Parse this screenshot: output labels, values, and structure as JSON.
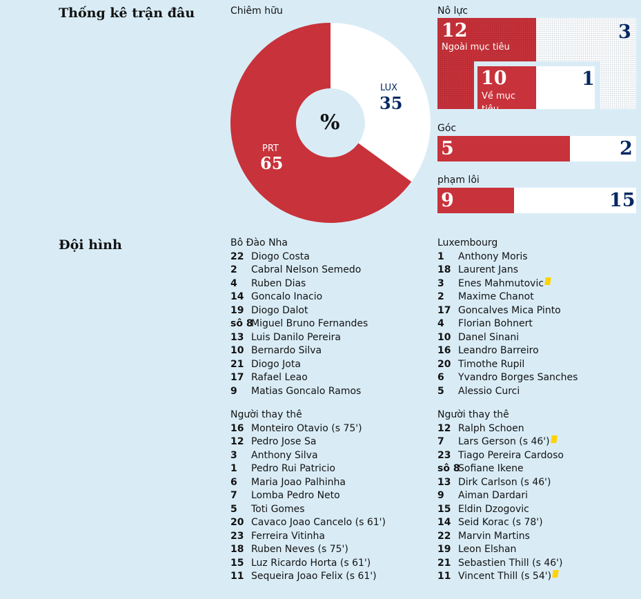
{
  "headings": {
    "stats": "Thống kê trận đâu",
    "lineups": "Đội hình"
  },
  "possession": {
    "label": "Chiêm hữu",
    "center": "%",
    "home_code": "PRT",
    "home_value": 65,
    "away_code": "LUX",
    "away_value": 35,
    "colors": {
      "home": "#c8323a",
      "away": "#ffffff",
      "center": "#d9ecf6"
    }
  },
  "effort": {
    "label": "Nô lực",
    "off_target_home": "12",
    "off_target_label": "Ngoài mục tiêu",
    "off_target_away": "3",
    "on_target_home": "10",
    "on_target_label": "Về mục tiêu",
    "on_target_away": "1"
  },
  "corners": {
    "label": "Góc",
    "home": "5",
    "away": "2"
  },
  "fouls": {
    "label": "phạm lôi",
    "home": "9",
    "away": "15"
  },
  "home_team": {
    "name": "Bô Đào Nha",
    "starters": [
      {
        "num": "22",
        "name": "Diogo Costa"
      },
      {
        "num": "2",
        "name": "Cabral Nelson Semedo"
      },
      {
        "num": "4",
        "name": "Ruben Dias"
      },
      {
        "num": "14",
        "name": "Goncalo Inacio"
      },
      {
        "num": "19",
        "name": "Diogo Dalot"
      },
      {
        "num": "sô 8",
        "name": "Miguel Bruno Fernandes"
      },
      {
        "num": "13",
        "name": "Luis Danilo Pereira"
      },
      {
        "num": "10",
        "name": "Bernardo Silva"
      },
      {
        "num": "21",
        "name": "Diogo Jota"
      },
      {
        "num": "17",
        "name": "Rafael Leao"
      },
      {
        "num": "9",
        "name": "Matias Goncalo Ramos"
      }
    ],
    "subs_label": "Người thay thê",
    "subs": [
      {
        "num": "16",
        "name": "Monteiro Otavio (s 75')"
      },
      {
        "num": "12",
        "name": "Pedro Jose Sa"
      },
      {
        "num": "3",
        "name": "Anthony Silva"
      },
      {
        "num": "1",
        "name": "Pedro Rui Patricio"
      },
      {
        "num": "6",
        "name": "Maria Joao Palhinha"
      },
      {
        "num": "7",
        "name": "Lomba Pedro Neto"
      },
      {
        "num": "5",
        "name": "Toti Gomes"
      },
      {
        "num": "20",
        "name": "Cavaco Joao Cancelo (s 61')"
      },
      {
        "num": "23",
        "name": "Ferreira Vitinha"
      },
      {
        "num": "18",
        "name": "Ruben Neves (s 75')"
      },
      {
        "num": "15",
        "name": "Luz Ricardo Horta (s 61')"
      },
      {
        "num": "11",
        "name": "Sequeira Joao Felix (s 61')"
      }
    ]
  },
  "away_team": {
    "name": "Luxembourg",
    "starters": [
      {
        "num": "1",
        "name": "Anthony Moris",
        "card": false
      },
      {
        "num": "18",
        "name": "Laurent Jans",
        "card": false
      },
      {
        "num": "3",
        "name": "Enes Mahmutovic",
        "card": true
      },
      {
        "num": "2",
        "name": "Maxime Chanot",
        "card": false
      },
      {
        "num": "17",
        "name": "Goncalves Mica Pinto",
        "card": false
      },
      {
        "num": "4",
        "name": "Florian Bohnert",
        "card": false
      },
      {
        "num": "10",
        "name": "Danel Sinani",
        "card": false
      },
      {
        "num": "16",
        "name": "Leandro Barreiro",
        "card": false
      },
      {
        "num": "20",
        "name": "Timothe Rupil",
        "card": false
      },
      {
        "num": "6",
        "name": "Yvandro Borges Sanches",
        "card": false
      },
      {
        "num": "5",
        "name": "Alessio Curci",
        "card": false
      }
    ],
    "subs_label": "Người thay thê",
    "subs": [
      {
        "num": "12",
        "name": "Ralph Schoen",
        "card": false
      },
      {
        "num": "7",
        "name": "Lars Gerson (s 46')",
        "card": true
      },
      {
        "num": "23",
        "name": "Tiago Pereira Cardoso",
        "card": false
      },
      {
        "num": "sô 8",
        "name": "Sofiane Ikene",
        "card": false
      },
      {
        "num": "13",
        "name": "Dirk Carlson (s 46')",
        "card": false
      },
      {
        "num": "9",
        "name": "Aiman Dardari",
        "card": false
      },
      {
        "num": "15",
        "name": "Eldin Dzogovic",
        "card": false
      },
      {
        "num": "14",
        "name": "Seid Korac (s 78')",
        "card": false
      },
      {
        "num": "22",
        "name": "Marvin Martins",
        "card": false
      },
      {
        "num": "19",
        "name": "Leon Elshan",
        "card": false
      },
      {
        "num": "21",
        "name": "Sebastien Thill (s 46')",
        "card": false
      },
      {
        "num": "11",
        "name": "Vincent Thill (s 54')",
        "card": true
      }
    ]
  }
}
